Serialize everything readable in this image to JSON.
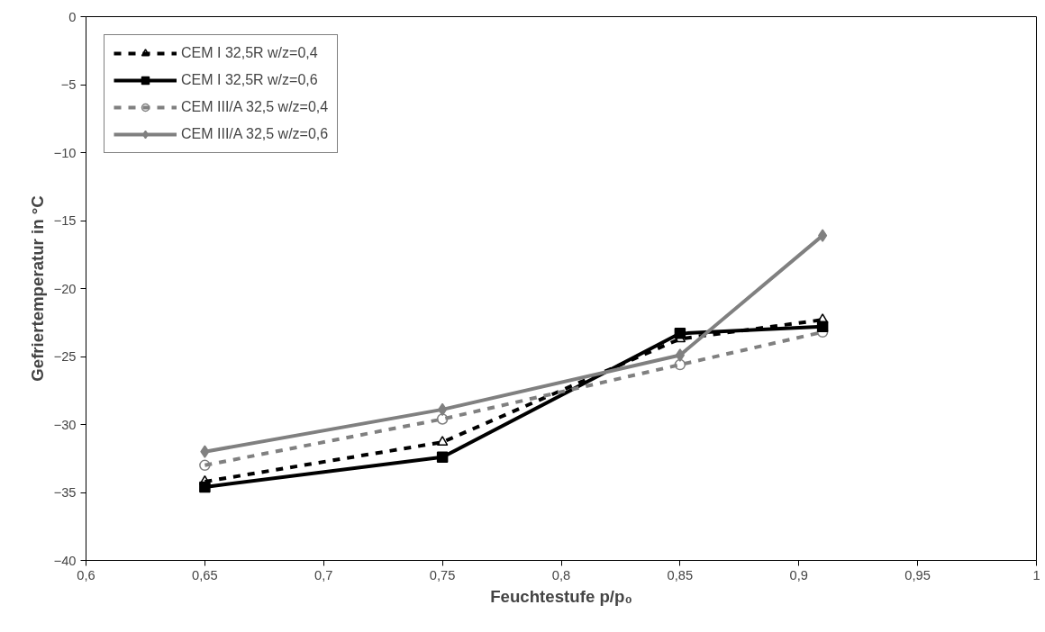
{
  "chart_data": {
    "type": "line",
    "xlabel": "Feuchtestufe p/p₀",
    "ylabel": "Gefriertemperatur in °C",
    "x": [
      0.65,
      0.75,
      0.85,
      0.91
    ],
    "xlim": [
      0.6,
      1
    ],
    "xticks": [
      {
        "value": 0.6,
        "label": "0,6"
      },
      {
        "value": 0.65,
        "label": "0,65"
      },
      {
        "value": 0.7,
        "label": "0,7"
      },
      {
        "value": 0.75,
        "label": "0,75"
      },
      {
        "value": 0.8,
        "label": "0,8"
      },
      {
        "value": 0.85,
        "label": "0,85"
      },
      {
        "value": 0.9,
        "label": "0,9"
      },
      {
        "value": 0.95,
        "label": "0,95"
      },
      {
        "value": 1,
        "label": "1"
      }
    ],
    "ylim": [
      -40,
      0
    ],
    "yticks": [
      -40,
      -35,
      -30,
      -25,
      -20,
      -15,
      -10,
      -5,
      0
    ],
    "grid": false,
    "legend": "top left",
    "series": [
      {
        "name": "CEM I 32,5R w/z=0,4",
        "color": "#000000",
        "marker": "triangle",
        "line_style": "dashed",
        "values": [
          -34.2,
          -31.3,
          -23.7,
          -22.3
        ]
      },
      {
        "name": "CEM I 32,5R w/z=0,6",
        "color": "#000000",
        "marker": "square",
        "line_style": "solid",
        "values": [
          -34.6,
          -32.4,
          -23.3,
          -22.8
        ]
      },
      {
        "name": "CEM III/A 32,5 w/z=0,4",
        "color": "#808080",
        "marker": "circle",
        "line_style": "dashed",
        "values": [
          -33.0,
          -29.6,
          -25.6,
          -23.2
        ]
      },
      {
        "name": "CEM III/A 32,5 w/z=0,6",
        "color": "#808080",
        "marker": "diamond",
        "line_style": "solid",
        "values": [
          -32.0,
          -28.9,
          -24.9,
          -16.1
        ]
      }
    ]
  }
}
